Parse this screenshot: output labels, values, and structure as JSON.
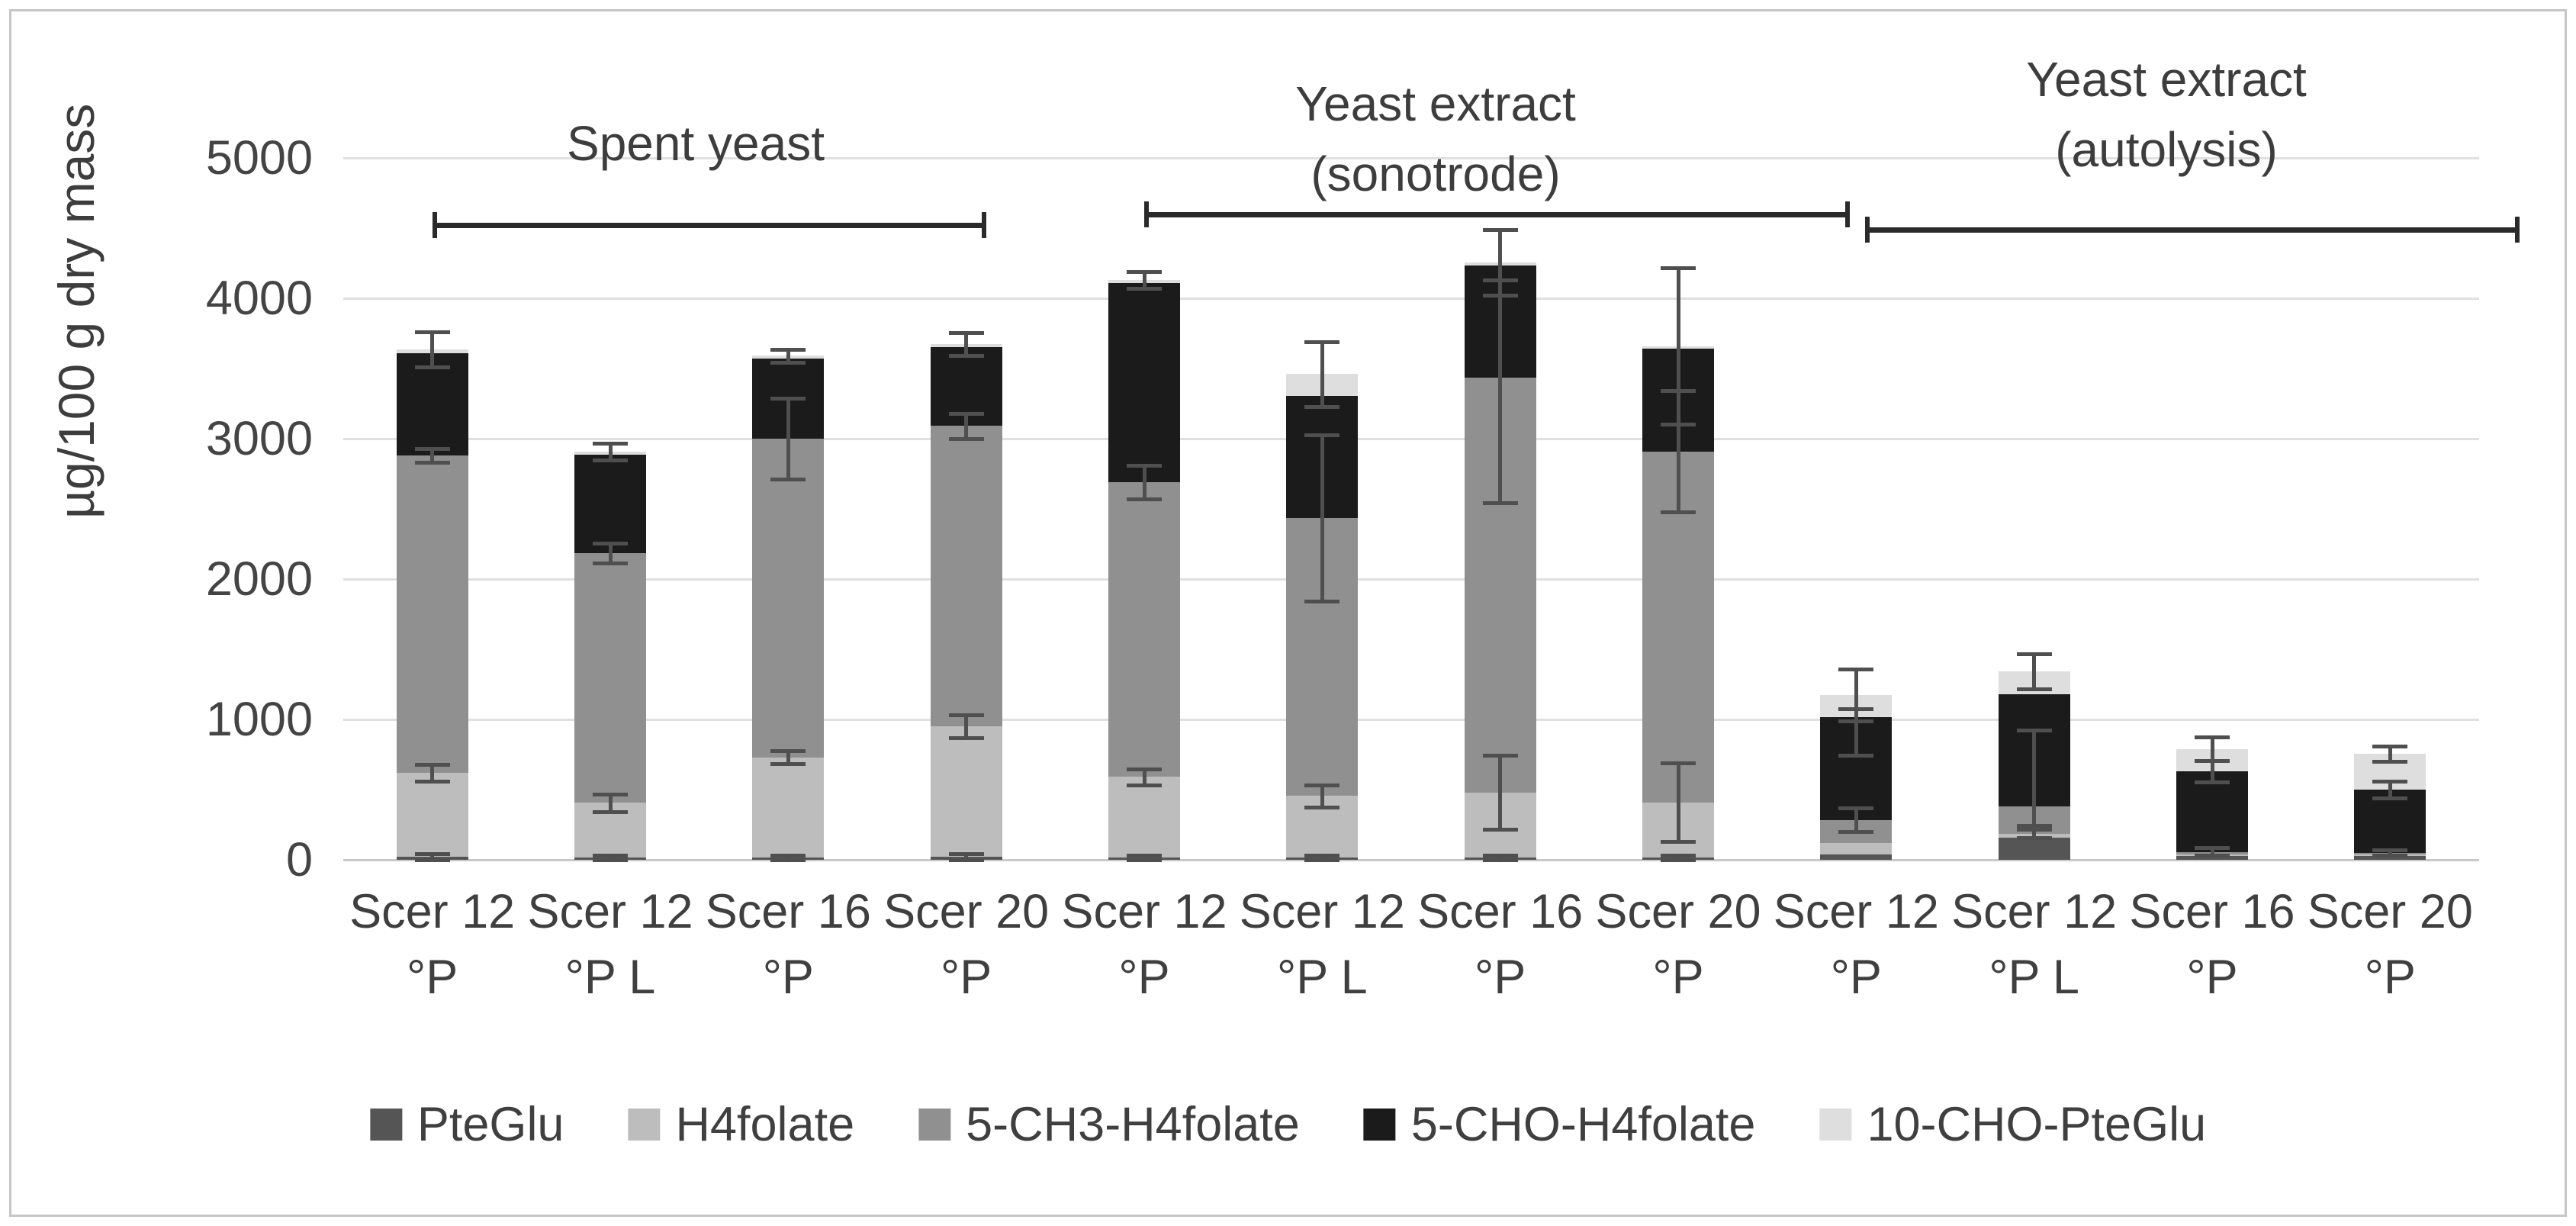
{
  "chart_data": {
    "type": "bar",
    "stacked": true,
    "ylabel": "µg/100 g dry mass",
    "xlabel": "",
    "ylim": [
      0,
      5000
    ],
    "yticks": [
      0,
      1000,
      2000,
      3000,
      4000,
      5000
    ],
    "grid": true,
    "legend_position": "bottom",
    "categories": [
      "Scer 12\n°P",
      "Scer 12\n°P L",
      "Scer 16\n°P",
      "Scer 20\n°P",
      "Scer 12\n°P",
      "Scer 12\n°P L",
      "Scer 16\n°P",
      "Scer 20\n°P",
      "Scer 12\n°P",
      "Scer 12\n°P L",
      "Scer 16\n°P",
      "Scer 20\n°P"
    ],
    "groups": [
      {
        "lines": "Spent yeast",
        "from": 0,
        "to": 3
      },
      {
        "lines": "Yeast extract\n(sonotrode)",
        "from": 4,
        "to": 7
      },
      {
        "lines": "Yeast extract\n(autolysis)",
        "from": 8,
        "to": 11
      }
    ],
    "series": [
      {
        "name": "PteGlu",
        "color": "#555555",
        "values": [
          20,
          15,
          15,
          20,
          15,
          15,
          15,
          15,
          40,
          160,
          25,
          25
        ]
      },
      {
        "name": "H4folate",
        "color": "#bdbdbd",
        "values": [
          600,
          390,
          715,
          930,
          575,
          440,
          465,
          395,
          80,
          25,
          15,
          15
        ]
      },
      {
        "name": "5-CH3-H4folate",
        "color": "#909090",
        "values": [
          2260,
          1780,
          2270,
          2140,
          2100,
          1980,
          2955,
          2500,
          165,
          195,
          15,
          10
        ]
      },
      {
        "name": "5-CHO-H4folate",
        "color": "#1b1b1b",
        "values": [
          730,
          700,
          570,
          560,
          1420,
          870,
          800,
          730,
          730,
          800,
          575,
          450
        ]
      },
      {
        "name": "10-CHO-PteGlu",
        "color": "#dedede",
        "values": [
          25,
          25,
          20,
          25,
          20,
          155,
          20,
          20,
          160,
          165,
          160,
          255
        ]
      }
    ],
    "totals": [
      3635,
      2910,
      3590,
      3675,
      4130,
      3460,
      4255,
      3660,
      1175,
      1345,
      790,
      755
    ],
    "error_bars": [
      [
        [
          20,
          20,
          25
        ],
        [
          620,
          60,
          60
        ],
        [
          2880,
          50,
          50
        ],
        [
          3635,
          125,
          125
        ]
      ],
      [
        [
          15,
          15,
          20
        ],
        [
          405,
          60,
          60
        ],
        [
          2185,
          70,
          70
        ],
        [
          2910,
          60,
          60
        ]
      ],
      [
        [
          15,
          15,
          20
        ],
        [
          730,
          45,
          45
        ],
        [
          3000,
          290,
          290
        ],
        [
          3590,
          45,
          45
        ]
      ],
      [
        [
          20,
          20,
          25
        ],
        [
          950,
          80,
          80
        ],
        [
          3090,
          90,
          90
        ],
        [
          3675,
          80,
          80
        ]
      ],
      [
        [
          15,
          15,
          20
        ],
        [
          590,
          55,
          55
        ],
        [
          2690,
          120,
          120
        ],
        [
          4130,
          60,
          60
        ]
      ],
      [
        [
          15,
          15,
          20
        ],
        [
          455,
          80,
          80
        ],
        [
          2435,
          590,
          590
        ],
        [
          3460,
          230,
          230
        ]
      ],
      [
        [
          15,
          15,
          20
        ],
        [
          480,
          265,
          265
        ],
        [
          3435,
          890,
          695
        ],
        [
          4255,
          235,
          235
        ]
      ],
      [
        [
          15,
          15,
          20
        ],
        [
          410,
          280,
          280
        ],
        [
          2910,
          430,
          430
        ],
        [
          3660,
          555,
          555
        ]
      ],
      [
        [
          285,
          85,
          85
        ],
        [
          1015,
          270,
          60
        ],
        [
          1175,
          185,
          185
        ]
      ],
      [
        [
          185,
          30,
          30
        ],
        [
          380,
          135,
          545
        ],
        [
          1345,
          125,
          125
        ]
      ],
      [
        [
          60,
          25,
          25
        ],
        [
          630,
          75,
          75
        ],
        [
          790,
          85,
          85
        ]
      ],
      [
        [
          50,
          20,
          20
        ],
        [
          500,
          60,
          60
        ],
        [
          755,
          55,
          55
        ]
      ]
    ],
    "colors": {
      "grid": "#e0e0e0",
      "axis": "#c9c9c9",
      "error_bar": "#4f4f4f",
      "bracket": "#2a2a2a",
      "text": "#3f3f3f"
    }
  }
}
